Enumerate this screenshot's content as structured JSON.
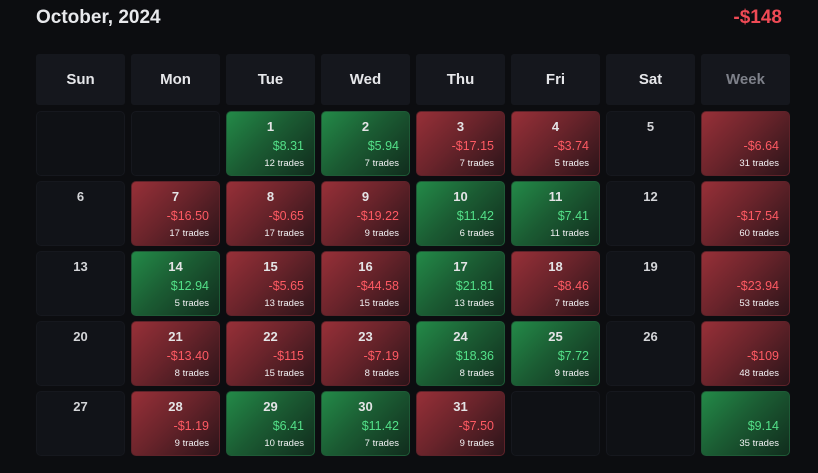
{
  "header": {
    "title": "October, 2024",
    "total": "-$148"
  },
  "colors": {
    "positive": "#53e088",
    "negative": "#ff5a63",
    "background": "#0c0d10"
  },
  "weekdays": [
    "Sun",
    "Mon",
    "Tue",
    "Wed",
    "Thu",
    "Fri",
    "Sat",
    "Week"
  ],
  "weeks": [
    {
      "days": [
        null,
        null,
        {
          "day": "1",
          "pnl": "$8.31",
          "trades": "12 trades",
          "sign": "pos"
        },
        {
          "day": "2",
          "pnl": "$5.94",
          "trades": "7 trades",
          "sign": "pos"
        },
        {
          "day": "3",
          "pnl": "-$17.15",
          "trades": "7 trades",
          "sign": "neg"
        },
        {
          "day": "4",
          "pnl": "-$3.74",
          "trades": "5 trades",
          "sign": "neg"
        },
        {
          "day": "5"
        }
      ],
      "summary": {
        "pnl": "-$6.64",
        "trades": "31 trades",
        "sign": "neg"
      }
    },
    {
      "days": [
        {
          "day": "6"
        },
        {
          "day": "7",
          "pnl": "-$16.50",
          "trades": "17 trades",
          "sign": "neg"
        },
        {
          "day": "8",
          "pnl": "-$0.65",
          "trades": "17 trades",
          "sign": "neg"
        },
        {
          "day": "9",
          "pnl": "-$19.22",
          "trades": "9 trades",
          "sign": "neg"
        },
        {
          "day": "10",
          "pnl": "$11.42",
          "trades": "6 trades",
          "sign": "pos"
        },
        {
          "day": "11",
          "pnl": "$7.41",
          "trades": "11 trades",
          "sign": "pos"
        },
        {
          "day": "12"
        }
      ],
      "summary": {
        "pnl": "-$17.54",
        "trades": "60 trades",
        "sign": "neg"
      }
    },
    {
      "days": [
        {
          "day": "13"
        },
        {
          "day": "14",
          "pnl": "$12.94",
          "trades": "5 trades",
          "sign": "pos"
        },
        {
          "day": "15",
          "pnl": "-$5.65",
          "trades": "13 trades",
          "sign": "neg"
        },
        {
          "day": "16",
          "pnl": "-$44.58",
          "trades": "15 trades",
          "sign": "neg"
        },
        {
          "day": "17",
          "pnl": "$21.81",
          "trades": "13 trades",
          "sign": "pos"
        },
        {
          "day": "18",
          "pnl": "-$8.46",
          "trades": "7 trades",
          "sign": "neg"
        },
        {
          "day": "19"
        }
      ],
      "summary": {
        "pnl": "-$23.94",
        "trades": "53 trades",
        "sign": "neg"
      }
    },
    {
      "days": [
        {
          "day": "20"
        },
        {
          "day": "21",
          "pnl": "-$13.40",
          "trades": "8 trades",
          "sign": "neg"
        },
        {
          "day": "22",
          "pnl": "-$115",
          "trades": "15 trades",
          "sign": "neg"
        },
        {
          "day": "23",
          "pnl": "-$7.19",
          "trades": "8 trades",
          "sign": "neg"
        },
        {
          "day": "24",
          "pnl": "$18.36",
          "trades": "8 trades",
          "sign": "pos"
        },
        {
          "day": "25",
          "pnl": "$7.72",
          "trades": "9 trades",
          "sign": "pos"
        },
        {
          "day": "26"
        }
      ],
      "summary": {
        "pnl": "-$109",
        "trades": "48 trades",
        "sign": "neg"
      }
    },
    {
      "days": [
        {
          "day": "27"
        },
        {
          "day": "28",
          "pnl": "-$1.19",
          "trades": "9 trades",
          "sign": "neg"
        },
        {
          "day": "29",
          "pnl": "$6.41",
          "trades": "10 trades",
          "sign": "pos"
        },
        {
          "day": "30",
          "pnl": "$11.42",
          "trades": "7 trades",
          "sign": "pos"
        },
        {
          "day": "31",
          "pnl": "-$7.50",
          "trades": "9 trades",
          "sign": "neg"
        },
        null,
        null
      ],
      "summary": {
        "pnl": "$9.14",
        "trades": "35 trades",
        "sign": "pos"
      }
    }
  ]
}
